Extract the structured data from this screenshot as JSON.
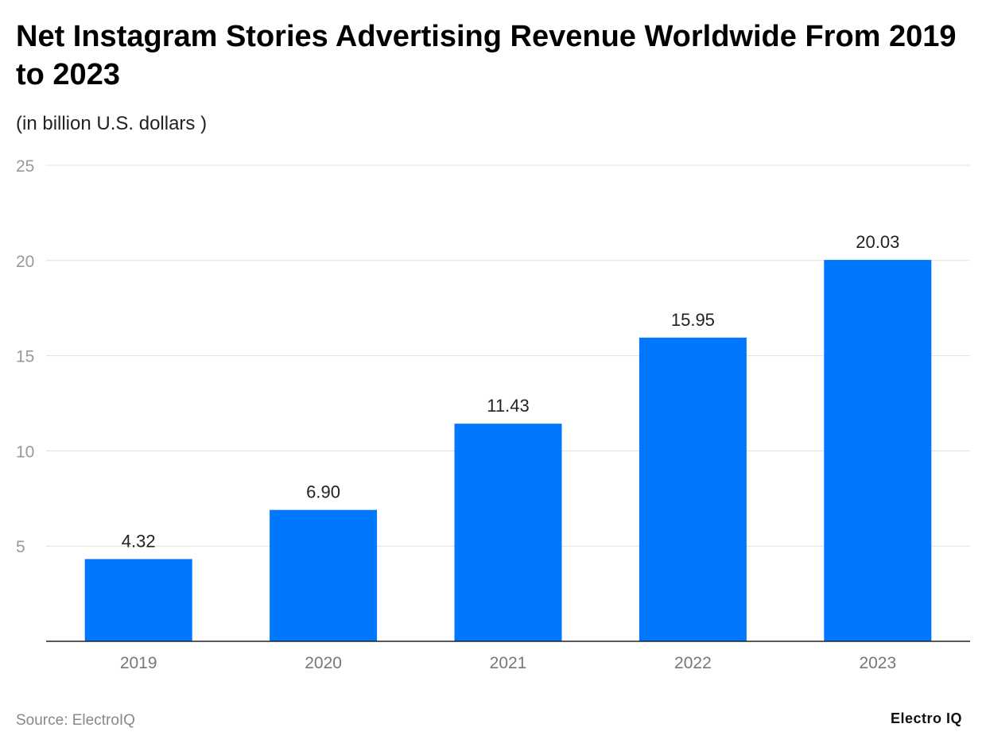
{
  "chart_data": {
    "type": "bar",
    "title": "Net Instagram Stories Advertising Revenue Worldwide From 2019 to 2023",
    "subtitle": "(in billion U.S. dollars )",
    "categories": [
      "2019",
      "2020",
      "2021",
      "2022",
      "2023"
    ],
    "values": [
      4.32,
      6.9,
      11.43,
      15.95,
      20.03
    ],
    "value_labels": [
      "4.32",
      "6.90",
      "11.43",
      "15.95",
      "20.03"
    ],
    "xlabel": "",
    "ylabel": "",
    "ylim": [
      0,
      25
    ],
    "yticks": [
      5,
      10,
      15,
      20,
      25
    ],
    "grid": true,
    "bar_color": "#0077ff"
  },
  "footer": {
    "source": "Source: ElectroIQ",
    "logo": "Electro IQ"
  }
}
